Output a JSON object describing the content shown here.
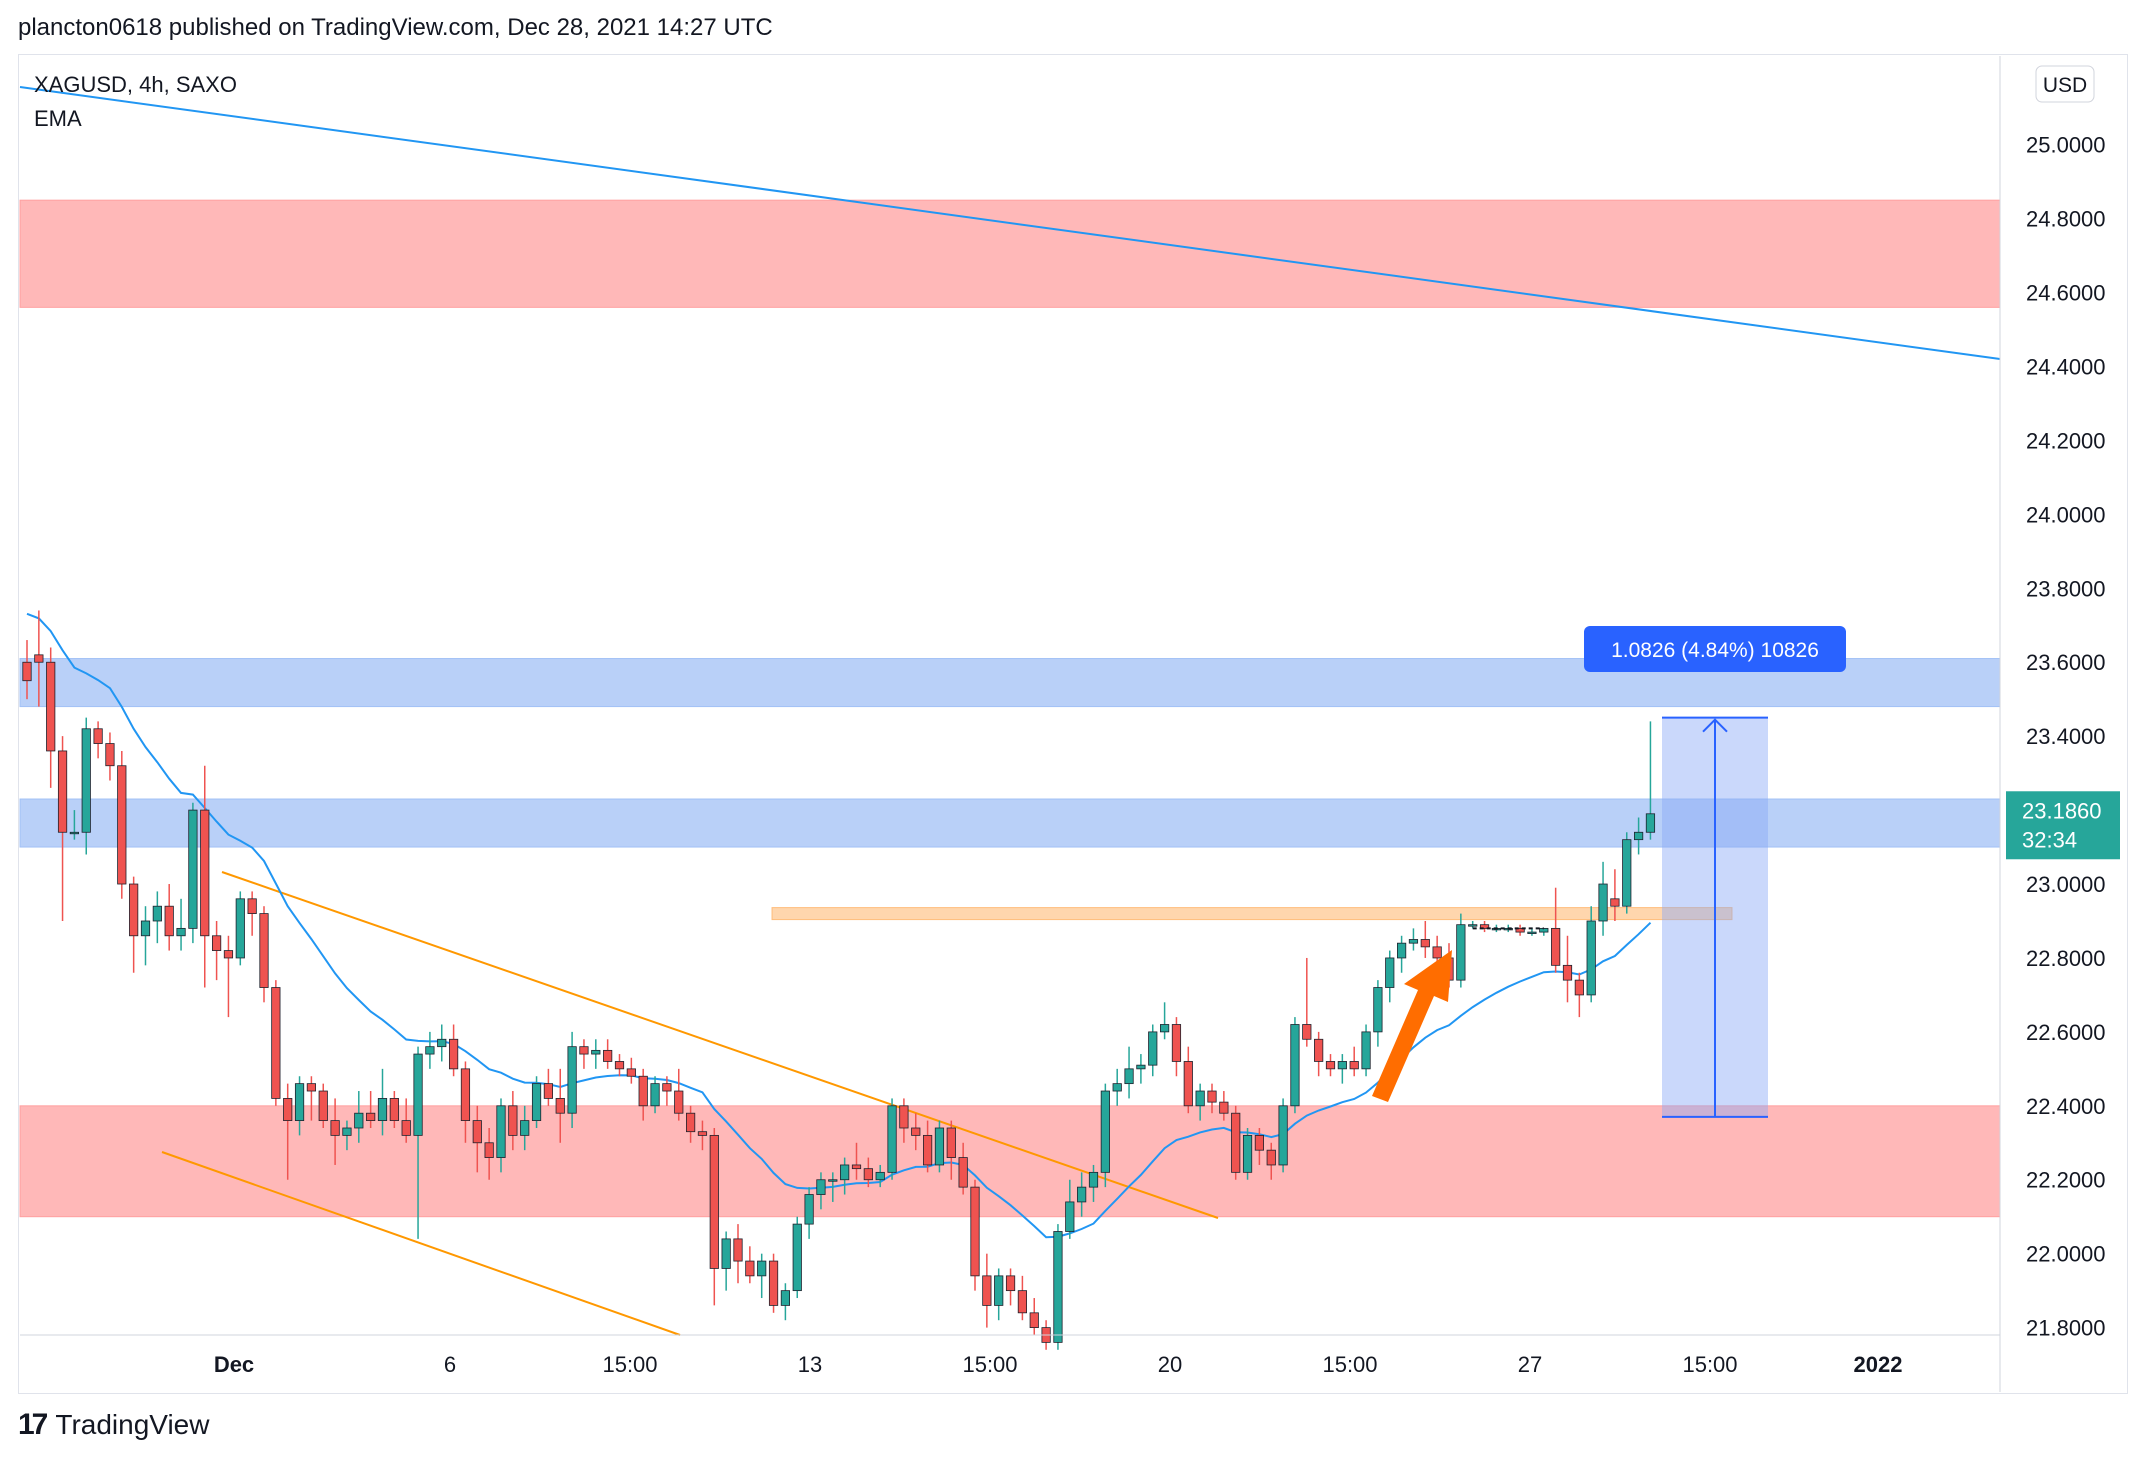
{
  "header": {
    "text": "plancton0618 published on TradingView.com, Dec 28, 2021 14:27 UTC"
  },
  "footer": {
    "logo_text": "TradingView"
  },
  "chart_data": {
    "type": "candlestick",
    "symbol_line": "XAGUSD, 4h, SAXO",
    "indicator_label": "EMA",
    "currency_label": "USD",
    "y_range": [
      21.78,
      25.24
    ],
    "y_ticks": [
      "25.0000",
      "24.8000",
      "24.6000",
      "24.4000",
      "24.2000",
      "24.0000",
      "23.8000",
      "23.6000",
      "23.4000",
      "23.2000",
      "23.0000",
      "22.8000",
      "22.6000",
      "22.4000",
      "22.2000",
      "22.0000",
      "21.8000"
    ],
    "x_tick_labels": [
      "Dec",
      "6",
      "15:00",
      "13",
      "15:00",
      "20",
      "15:00",
      "27",
      "15:00",
      "2022"
    ],
    "last_price": "23.1860",
    "countdown": "32:34",
    "measure_label": "1.0826 (4.84%) 10826",
    "measure_range": [
      22.37,
      23.45
    ],
    "zones": [
      {
        "name": "resistance-zone-top",
        "from": 24.56,
        "to": 24.85,
        "color": "#ff9a9a"
      },
      {
        "name": "resistance-zone-blue-upper",
        "from": 23.48,
        "to": 23.61,
        "color": "#9bbcf5"
      },
      {
        "name": "resistance-zone-blue-lower",
        "from": 23.1,
        "to": 23.23,
        "color": "#9bbcf5"
      },
      {
        "name": "support-zone-bottom",
        "from": 22.1,
        "to": 22.4,
        "color": "#ff9a9a"
      }
    ],
    "breakout_level": 22.92,
    "colors": {
      "up": "#26a69a",
      "down": "#ef5350",
      "ema": "#2196f3",
      "trendline": "#2196f3",
      "channel": "#ff9800",
      "arrow": "#ff6d00",
      "measure": "#2962ff",
      "price_badge": "#26a69a"
    },
    "candles": [
      [
        23.6,
        23.66,
        23.5,
        23.55
      ],
      [
        23.62,
        23.74,
        23.48,
        23.6
      ],
      [
        23.6,
        23.64,
        23.26,
        23.36
      ],
      [
        23.36,
        23.4,
        22.9,
        23.14
      ],
      [
        23.14,
        23.2,
        23.12,
        23.14
      ],
      [
        23.14,
        23.45,
        23.08,
        23.42
      ],
      [
        23.42,
        23.44,
        23.34,
        23.38
      ],
      [
        23.38,
        23.41,
        23.28,
        23.32
      ],
      [
        23.32,
        23.36,
        22.96,
        23.0
      ],
      [
        23.0,
        23.02,
        22.76,
        22.86
      ],
      [
        22.86,
        22.94,
        22.78,
        22.9
      ],
      [
        22.9,
        22.98,
        22.84,
        22.94
      ],
      [
        22.94,
        23.0,
        22.82,
        22.86
      ],
      [
        22.86,
        22.96,
        22.82,
        22.88
      ],
      [
        22.88,
        23.22,
        22.84,
        23.2
      ],
      [
        23.2,
        23.32,
        22.72,
        22.86
      ],
      [
        22.86,
        22.9,
        22.74,
        22.82
      ],
      [
        22.82,
        22.86,
        22.64,
        22.8
      ],
      [
        22.8,
        22.98,
        22.78,
        22.96
      ],
      [
        22.96,
        22.98,
        22.86,
        22.92
      ],
      [
        22.92,
        22.94,
        22.68,
        22.72
      ],
      [
        22.72,
        22.74,
        22.4,
        22.42
      ],
      [
        22.42,
        22.46,
        22.2,
        22.36
      ],
      [
        22.36,
        22.48,
        22.32,
        22.46
      ],
      [
        22.46,
        22.48,
        22.36,
        22.44
      ],
      [
        22.44,
        22.46,
        22.34,
        22.36
      ],
      [
        22.36,
        22.42,
        22.24,
        22.32
      ],
      [
        22.32,
        22.36,
        22.28,
        22.34
      ],
      [
        22.34,
        22.44,
        22.3,
        22.38
      ],
      [
        22.38,
        22.44,
        22.34,
        22.36
      ],
      [
        22.36,
        22.5,
        22.32,
        22.42
      ],
      [
        22.42,
        22.44,
        22.34,
        22.36
      ],
      [
        22.36,
        22.42,
        22.3,
        22.32
      ],
      [
        22.32,
        22.56,
        22.04,
        22.54
      ],
      [
        22.54,
        22.6,
        22.5,
        22.56
      ],
      [
        22.56,
        22.62,
        22.52,
        22.58
      ],
      [
        22.58,
        22.62,
        22.48,
        22.5
      ],
      [
        22.5,
        22.52,
        22.3,
        22.36
      ],
      [
        22.36,
        22.4,
        22.22,
        22.3
      ],
      [
        22.3,
        22.34,
        22.2,
        22.26
      ],
      [
        22.26,
        22.42,
        22.22,
        22.4
      ],
      [
        22.4,
        22.44,
        22.28,
        22.32
      ],
      [
        22.32,
        22.4,
        22.28,
        22.36
      ],
      [
        22.36,
        22.48,
        22.34,
        22.46
      ],
      [
        22.46,
        22.5,
        22.4,
        22.42
      ],
      [
        22.42,
        22.5,
        22.3,
        22.38
      ],
      [
        22.38,
        22.6,
        22.34,
        22.56
      ],
      [
        22.56,
        22.58,
        22.5,
        22.54
      ],
      [
        22.54,
        22.58,
        22.5,
        22.55
      ],
      [
        22.55,
        22.58,
        22.5,
        22.52
      ],
      [
        22.52,
        22.54,
        22.48,
        22.5
      ],
      [
        22.5,
        22.53,
        22.46,
        22.48
      ],
      [
        22.48,
        22.5,
        22.36,
        22.4
      ],
      [
        22.4,
        22.48,
        22.38,
        22.46
      ],
      [
        22.46,
        22.48,
        22.4,
        22.44
      ],
      [
        22.44,
        22.5,
        22.36,
        22.38
      ],
      [
        22.38,
        22.4,
        22.3,
        22.33
      ],
      [
        22.33,
        22.36,
        22.28,
        22.32
      ],
      [
        22.32,
        22.34,
        21.86,
        21.96
      ],
      [
        21.96,
        22.06,
        21.9,
        22.04
      ],
      [
        22.04,
        22.08,
        21.92,
        21.98
      ],
      [
        21.98,
        22.02,
        21.92,
        21.94
      ],
      [
        21.94,
        22.0,
        21.88,
        21.98
      ],
      [
        21.98,
        22.0,
        21.84,
        21.86
      ],
      [
        21.86,
        21.92,
        21.82,
        21.9
      ],
      [
        21.9,
        22.1,
        21.88,
        22.08
      ],
      [
        22.08,
        22.18,
        22.04,
        22.16
      ],
      [
        22.16,
        22.22,
        22.12,
        22.2
      ],
      [
        22.2,
        22.22,
        22.14,
        22.2
      ],
      [
        22.2,
        22.26,
        22.16,
        22.24
      ],
      [
        22.24,
        22.3,
        22.2,
        22.23
      ],
      [
        22.23,
        22.26,
        22.18,
        22.2
      ],
      [
        22.2,
        22.24,
        22.18,
        22.22
      ],
      [
        22.22,
        22.42,
        22.2,
        22.4
      ],
      [
        22.4,
        22.42,
        22.3,
        22.34
      ],
      [
        22.34,
        22.38,
        22.28,
        22.32
      ],
      [
        22.32,
        22.36,
        22.22,
        22.24
      ],
      [
        22.24,
        22.36,
        22.22,
        22.34
      ],
      [
        22.34,
        22.36,
        22.2,
        22.26
      ],
      [
        22.26,
        22.3,
        22.16,
        22.18
      ],
      [
        22.18,
        22.2,
        21.9,
        21.94
      ],
      [
        21.94,
        22.0,
        21.8,
        21.86
      ],
      [
        21.86,
        21.96,
        21.82,
        21.94
      ],
      [
        21.94,
        21.96,
        21.86,
        21.9
      ],
      [
        21.9,
        21.94,
        21.82,
        21.84
      ],
      [
        21.84,
        21.88,
        21.78,
        21.8
      ],
      [
        21.8,
        21.82,
        21.74,
        21.76
      ],
      [
        21.76,
        22.08,
        21.74,
        22.06
      ],
      [
        22.06,
        22.2,
        22.04,
        22.14
      ],
      [
        22.14,
        22.22,
        22.1,
        22.18
      ],
      [
        22.18,
        22.24,
        22.14,
        22.22
      ],
      [
        22.22,
        22.46,
        22.18,
        22.44
      ],
      [
        22.44,
        22.5,
        22.4,
        22.46
      ],
      [
        22.46,
        22.56,
        22.42,
        22.5
      ],
      [
        22.5,
        22.54,
        22.46,
        22.51
      ],
      [
        22.51,
        22.62,
        22.48,
        22.6
      ],
      [
        22.6,
        22.68,
        22.58,
        22.62
      ],
      [
        22.62,
        22.64,
        22.48,
        22.52
      ],
      [
        22.52,
        22.56,
        22.38,
        22.4
      ],
      [
        22.4,
        22.46,
        22.36,
        22.44
      ],
      [
        22.44,
        22.46,
        22.38,
        22.41
      ],
      [
        22.41,
        22.44,
        22.36,
        22.38
      ],
      [
        22.38,
        22.4,
        22.2,
        22.22
      ],
      [
        22.22,
        22.34,
        22.2,
        22.32
      ],
      [
        22.32,
        22.34,
        22.24,
        22.28
      ],
      [
        22.28,
        22.3,
        22.2,
        22.24
      ],
      [
        22.24,
        22.42,
        22.22,
        22.4
      ],
      [
        22.4,
        22.64,
        22.38,
        22.62
      ],
      [
        22.62,
        22.8,
        22.56,
        22.58
      ],
      [
        22.58,
        22.6,
        22.48,
        22.52
      ],
      [
        22.52,
        22.54,
        22.48,
        22.5
      ],
      [
        22.5,
        22.54,
        22.46,
        22.52
      ],
      [
        22.52,
        22.56,
        22.48,
        22.5
      ],
      [
        22.5,
        22.62,
        22.48,
        22.6
      ],
      [
        22.6,
        22.74,
        22.56,
        22.72
      ],
      [
        22.72,
        22.82,
        22.68,
        22.8
      ],
      [
        22.8,
        22.86,
        22.76,
        22.84
      ],
      [
        22.84,
        22.88,
        22.82,
        22.85
      ],
      [
        22.85,
        22.9,
        22.8,
        22.83
      ],
      [
        22.83,
        22.86,
        22.76,
        22.8
      ],
      [
        22.8,
        22.84,
        22.72,
        22.74
      ],
      [
        22.74,
        22.92,
        22.72,
        22.89
      ],
      [
        22.89,
        22.9,
        22.88,
        22.89
      ],
      [
        22.89,
        22.9,
        22.87,
        22.88
      ],
      [
        22.88,
        22.89,
        22.87,
        22.88
      ],
      [
        22.88,
        22.89,
        22.87,
        22.88
      ],
      [
        22.88,
        22.89,
        22.86,
        22.87
      ],
      [
        22.87,
        22.88,
        22.86,
        22.87
      ],
      [
        22.87,
        22.88,
        22.86,
        22.88
      ],
      [
        22.88,
        22.99,
        22.76,
        22.78
      ],
      [
        22.78,
        22.86,
        22.68,
        22.74
      ],
      [
        22.74,
        22.76,
        22.64,
        22.7
      ],
      [
        22.7,
        22.94,
        22.68,
        22.9
      ],
      [
        22.9,
        23.06,
        22.86,
        23.0
      ],
      [
        22.96,
        23.04,
        22.9,
        22.94
      ],
      [
        22.94,
        23.14,
        22.92,
        23.12
      ],
      [
        23.12,
        23.18,
        23.08,
        23.14
      ],
      [
        23.14,
        23.44,
        23.12,
        23.19
      ]
    ]
  }
}
